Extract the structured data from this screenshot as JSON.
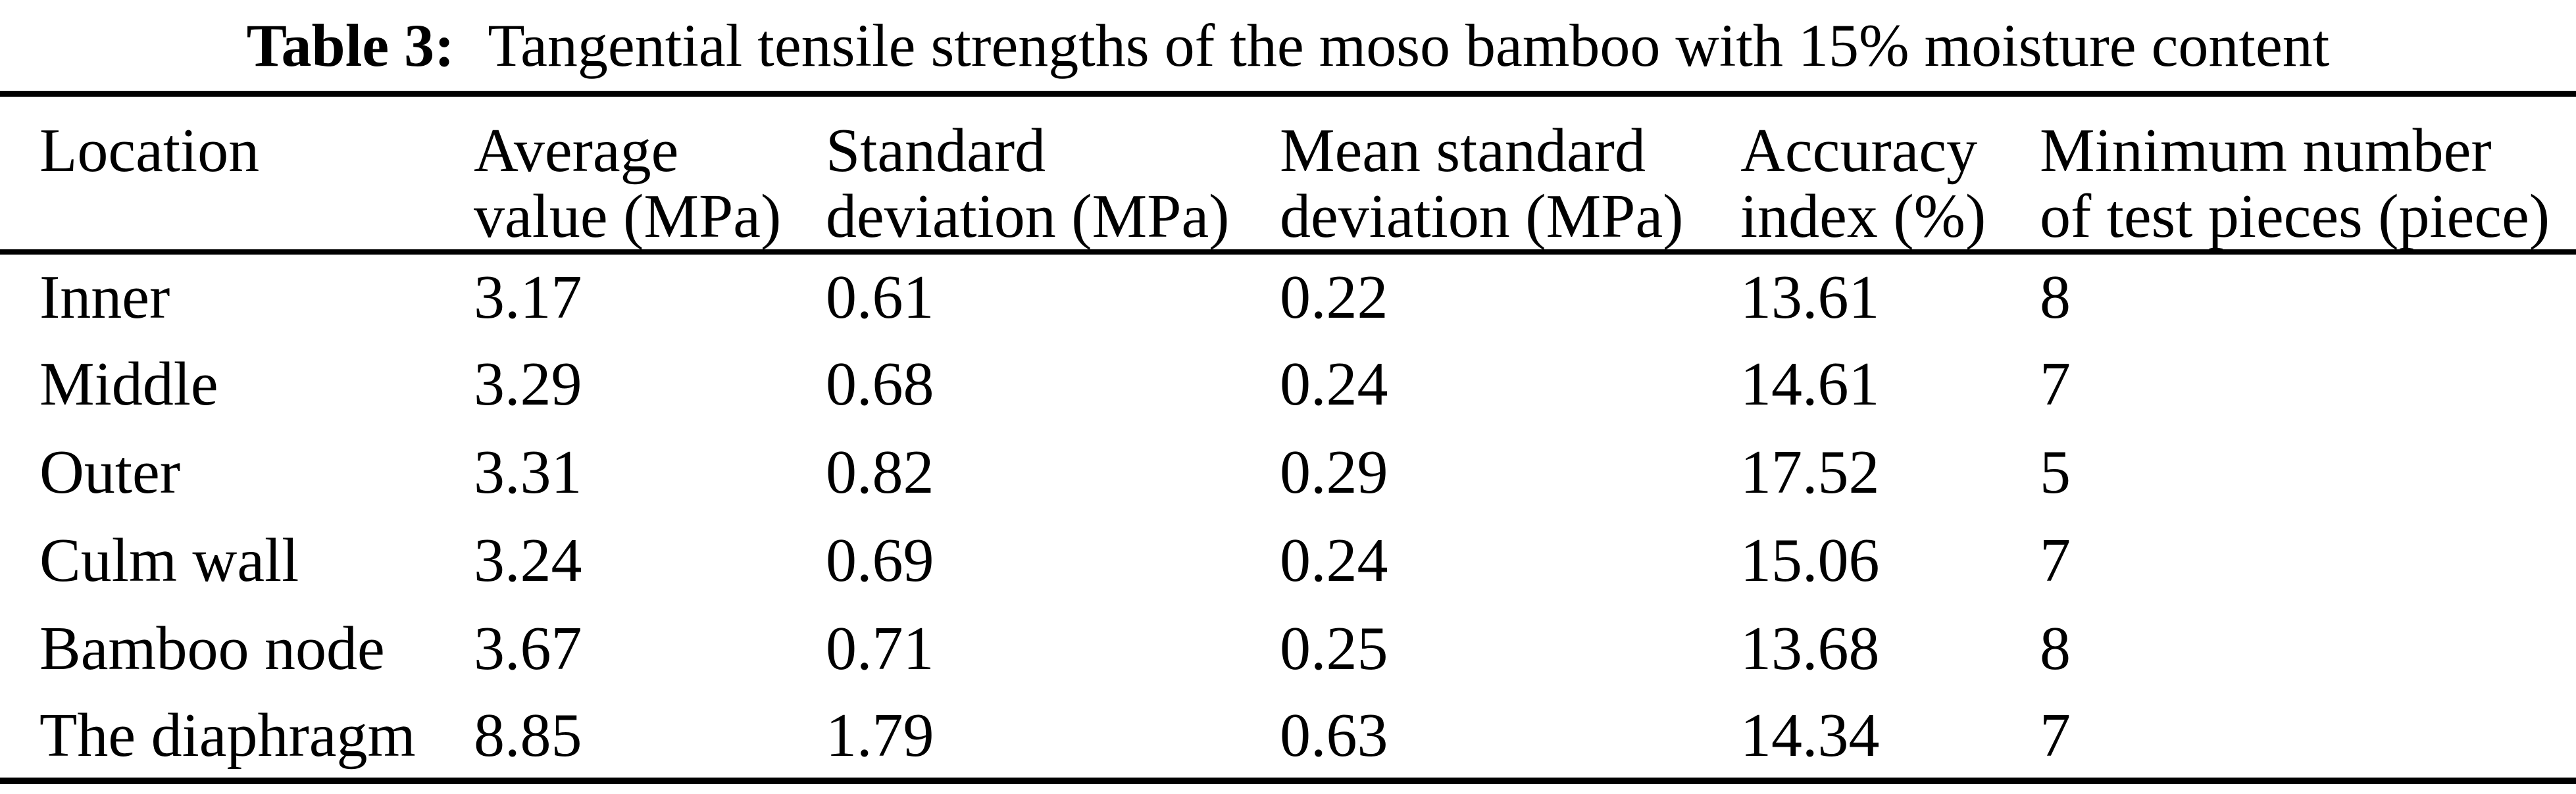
{
  "page": {
    "background": "#ffffff",
    "text_color": "#000000"
  },
  "title": {
    "label": "Table 3:",
    "text": "Tangential tensile strengths of the moso bamboo with 15% moisture content"
  },
  "table": {
    "columns": [
      {
        "l1": "Location",
        "l2": ""
      },
      {
        "l1": "Average",
        "l2": "value (MPa)"
      },
      {
        "l1": "Standard",
        "l2": "deviation (MPa)"
      },
      {
        "l1": "Mean standard",
        "l2": "deviation (MPa)"
      },
      {
        "l1": "Accuracy",
        "l2": "index (%)"
      },
      {
        "l1": "Minimum number",
        "l2": "of test pieces (piece)"
      }
    ],
    "rows": [
      [
        "Inner",
        "3.17",
        "0.61",
        "0.22",
        "13.61",
        "8"
      ],
      [
        "Middle",
        "3.29",
        "0.68",
        "0.24",
        "14.61",
        "7"
      ],
      [
        "Outer",
        "3.31",
        "0.82",
        "0.29",
        "17.52",
        "5"
      ],
      [
        "Culm wall",
        "3.24",
        "0.69",
        "0.24",
        "15.06",
        "7"
      ],
      [
        "Bamboo node",
        "3.67",
        "0.71",
        "0.25",
        "13.68",
        "8"
      ],
      [
        "The diaphragm",
        "8.85",
        "1.79",
        "0.63",
        "14.34",
        "7"
      ]
    ]
  },
  "chart_data": {
    "type": "table",
    "title": "Table 3: Tangential tensile strengths of the moso bamboo with 15% moisture content",
    "columns": [
      "Location",
      "Average value (MPa)",
      "Standard deviation (MPa)",
      "Mean standard deviation (MPa)",
      "Accuracy index (%)",
      "Minimum number of test pieces (piece)"
    ],
    "rows": [
      [
        "Inner",
        3.17,
        0.61,
        0.22,
        13.61,
        8
      ],
      [
        "Middle",
        3.29,
        0.68,
        0.24,
        14.61,
        7
      ],
      [
        "Outer",
        3.31,
        0.82,
        0.29,
        17.52,
        5
      ],
      [
        "Culm wall",
        3.24,
        0.69,
        0.24,
        15.06,
        7
      ],
      [
        "Bamboo node",
        3.67,
        0.71,
        0.25,
        13.68,
        8
      ],
      [
        "The diaphragm",
        8.85,
        1.79,
        0.63,
        14.34,
        7
      ]
    ]
  }
}
